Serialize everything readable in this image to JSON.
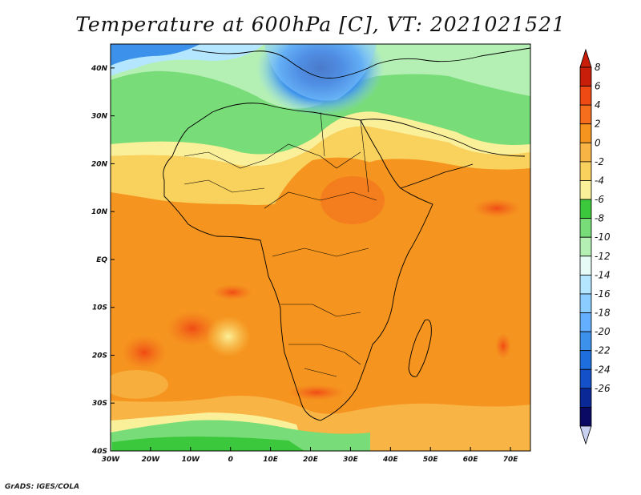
{
  "title": "Temperature at 600hPa [C], VT: 2021021521",
  "credit": "GrADS: IGES/COLA",
  "axes": {
    "lon_labels": [
      "30W",
      "20W",
      "10W",
      "0",
      "10E",
      "20E",
      "30E",
      "40E",
      "50E",
      "60E",
      "70E"
    ],
    "lat_labels": [
      "40N",
      "30N",
      "20N",
      "10N",
      "EQ",
      "10S",
      "20S",
      "30S",
      "40S"
    ]
  },
  "colorbar": {
    "labels": [
      "8",
      "6",
      "4",
      "2",
      "0",
      "-2",
      "-4",
      "-6",
      "-8",
      "-10",
      "-12",
      "-14",
      "-16",
      "-18",
      "-20",
      "-22",
      "-24",
      "-26"
    ],
    "colors": [
      "#c81e0a",
      "#f04a14",
      "#f46e1e",
      "#f5941e",
      "#f8b445",
      "#f9d25e",
      "#fbf09a",
      "#3cc83c",
      "#78dc78",
      "#b4f0b4",
      "#e6fbf5",
      "#b4e6ff",
      "#8ccdff",
      "#64afff",
      "#3c91eb",
      "#1e6ede",
      "#1450c8",
      "#0a2896",
      "#0a0a64"
    ],
    "top_arrow_color": "#c81e0a",
    "bottom_arrow_color": "#c8d2f0"
  }
}
